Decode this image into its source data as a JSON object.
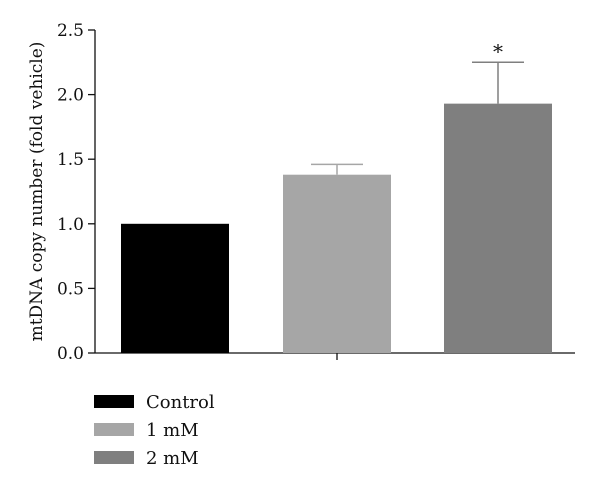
{
  "chart_data": {
    "type": "bar",
    "categories": [
      "Control",
      "1 mM",
      "2 mM"
    ],
    "series": [
      {
        "values": [
          1.0,
          1.38,
          1.93
        ],
        "errors": [
          0,
          0.08,
          0.32
        ],
        "colors": [
          "#000000",
          "#a6a6a6",
          "#7f7f7f"
        ]
      }
    ],
    "annotations": [
      "",
      "",
      "*"
    ],
    "ylabel": "mtDNA copy number (fold vehicle)",
    "xlabel": "",
    "ylim": [
      0,
      2.5
    ],
    "yticks": [
      "0.0",
      "0.5",
      "1.0",
      "1.5",
      "2.0",
      "2.5"
    ],
    "ytick_values": [
      0,
      0.5,
      1.0,
      1.5,
      2.0,
      2.5
    ],
    "grid": false,
    "legend": {
      "placement": "bottom-left",
      "entries": [
        "Control",
        "1 mM",
        "2 mM"
      ]
    }
  }
}
